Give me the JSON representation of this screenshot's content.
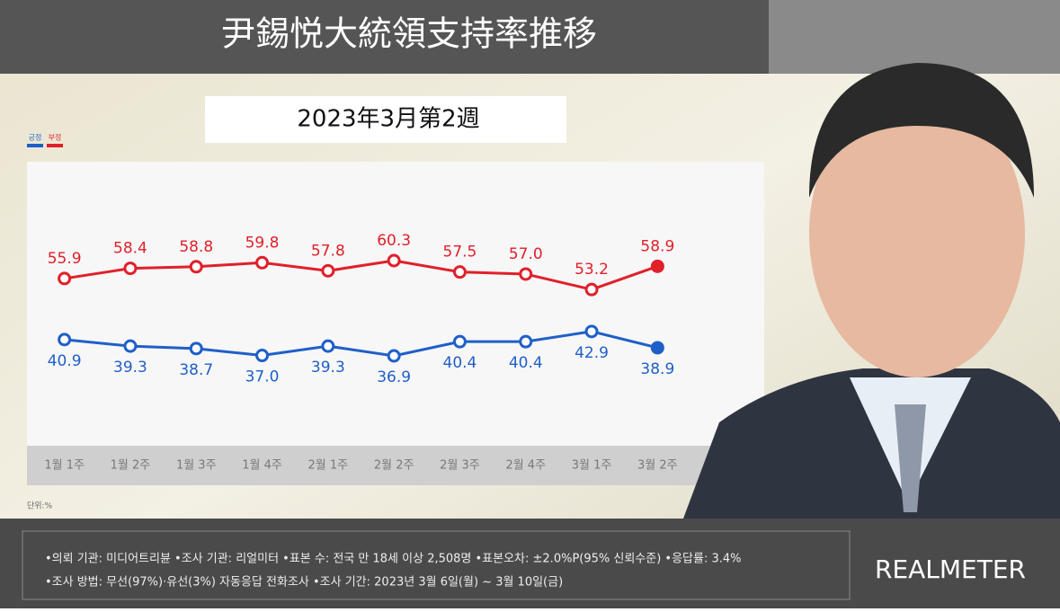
{
  "header": {
    "title": "尹錫悦大統領支持率推移",
    "subtitle": "2023年3月第2週"
  },
  "chart_data": {
    "type": "line",
    "categories": [
      "1월 1주",
      "1월 2주",
      "1월 3주",
      "1월 4주",
      "2월 1주",
      "2월 2주",
      "2월 3주",
      "2월 4주",
      "3월 1주",
      "3월 2주"
    ],
    "series": [
      {
        "name": "긍정",
        "color": "#1f5fc8",
        "values": [
          40.9,
          39.3,
          38.7,
          37.0,
          39.3,
          36.9,
          40.4,
          40.4,
          42.9,
          38.9
        ],
        "value_labels": [
          "40.9",
          "39.3",
          "38.7",
          "37.0",
          "39.3",
          "36.9",
          "40.4",
          "40.4",
          "42.9",
          "38.9"
        ]
      },
      {
        "name": "부정",
        "color": "#e0202a",
        "values": [
          55.9,
          58.4,
          58.8,
          59.8,
          57.8,
          60.3,
          57.5,
          57.0,
          53.2,
          58.9
        ],
        "value_labels": [
          "55.9",
          "58.4",
          "58.8",
          "59.8",
          "57.8",
          "60.3",
          "57.5",
          "57.0",
          "53.2",
          "58.9"
        ]
      }
    ],
    "unit": "단위:%"
  },
  "footer": {
    "lines": [
      "•의뢰 기관: 미디어트리뷴 •조사 기관: 리얼미터 •표본 수: 전국 만 18세 이상 2,508명 •표본오차: ±2.0%P(95% 신뢰수준) •응답률: 3.4%",
      "•조사 방법: 무선(97%)·유선(3%) 자동응답 전화조사 •조사 기간: 2023년 3월 6일(월) ~ 3월 10일(금)"
    ],
    "logo": "REALMETER"
  }
}
